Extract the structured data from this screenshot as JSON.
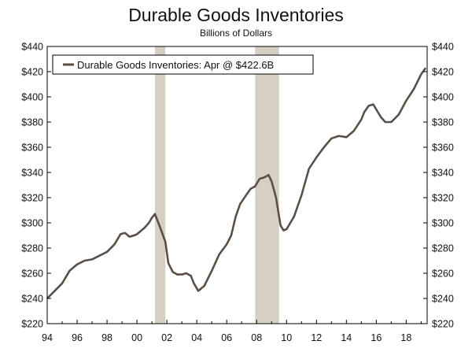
{
  "chart_data": {
    "type": "line",
    "title": "Durable Goods Inventories",
    "subtitle": "Billions of Dollars",
    "xlim": [
      1994,
      2019.4
    ],
    "ylim": [
      220,
      440
    ],
    "y_ticks": [
      220,
      240,
      260,
      280,
      300,
      320,
      340,
      360,
      380,
      400,
      420,
      440
    ],
    "y_tick_labels": [
      "$220",
      "$240",
      "$260",
      "$280",
      "$300",
      "$320",
      "$340",
      "$360",
      "$380",
      "$400",
      "$420",
      "$440"
    ],
    "x_ticks": [
      1994,
      1996,
      1998,
      2000,
      2002,
      2004,
      2006,
      2008,
      2010,
      2012,
      2014,
      2016,
      2018
    ],
    "x_tick_labels": [
      "94",
      "96",
      "98",
      "00",
      "02",
      "04",
      "06",
      "08",
      "10",
      "12",
      "14",
      "16",
      "18"
    ],
    "legend_position": "top-left",
    "grid": false,
    "recessions": [
      {
        "start": 2001.2,
        "end": 2001.9
      },
      {
        "start": 2007.9,
        "end": 2009.5
      }
    ],
    "colors": {
      "line": "#5a4f46",
      "recession": "#d6d0c4",
      "axis": "#000000"
    },
    "series": [
      {
        "name": "Durable Goods Inventories: Apr @ $422.6B",
        "x": [
          1994.0,
          1994.5,
          1995.0,
          1995.5,
          1996.0,
          1996.5,
          1997.0,
          1997.5,
          1998.0,
          1998.5,
          1998.9,
          1999.2,
          1999.5,
          1999.8,
          2000.0,
          2000.5,
          2000.8,
          2001.0,
          2001.2,
          2001.5,
          2001.9,
          2002.1,
          2002.4,
          2002.7,
          2003.0,
          2003.3,
          2003.6,
          2003.8,
          2004.1,
          2004.5,
          2005.0,
          2005.5,
          2006.0,
          2006.3,
          2006.6,
          2006.9,
          2007.3,
          2007.6,
          2007.9,
          2008.2,
          2008.5,
          2008.8,
          2009.0,
          2009.3,
          2009.6,
          2009.8,
          2010.0,
          2010.5,
          2011.0,
          2011.5,
          2012.0,
          2012.5,
          2013.0,
          2013.5,
          2014.0,
          2014.5,
          2015.0,
          2015.2,
          2015.5,
          2015.8,
          2016.0,
          2016.3,
          2016.6,
          2017.0,
          2017.5,
          2018.0,
          2018.5,
          2019.0,
          2019.3
        ],
        "values": [
          240,
          246,
          252,
          262,
          267,
          270,
          271,
          274,
          277,
          283,
          291,
          292,
          289,
          290,
          291,
          296,
          300,
          304,
          307,
          298,
          285,
          268,
          261,
          259,
          259,
          260,
          258,
          252,
          246,
          250,
          262,
          275,
          283,
          290,
          305,
          315,
          322,
          327,
          329,
          335,
          336,
          338,
          333,
          320,
          298,
          294,
          295,
          305,
          322,
          343,
          352,
          360,
          367,
          369,
          368,
          373,
          382,
          388,
          393,
          394,
          390,
          384,
          380,
          380,
          386,
          397,
          406,
          418,
          423
        ]
      }
    ]
  }
}
